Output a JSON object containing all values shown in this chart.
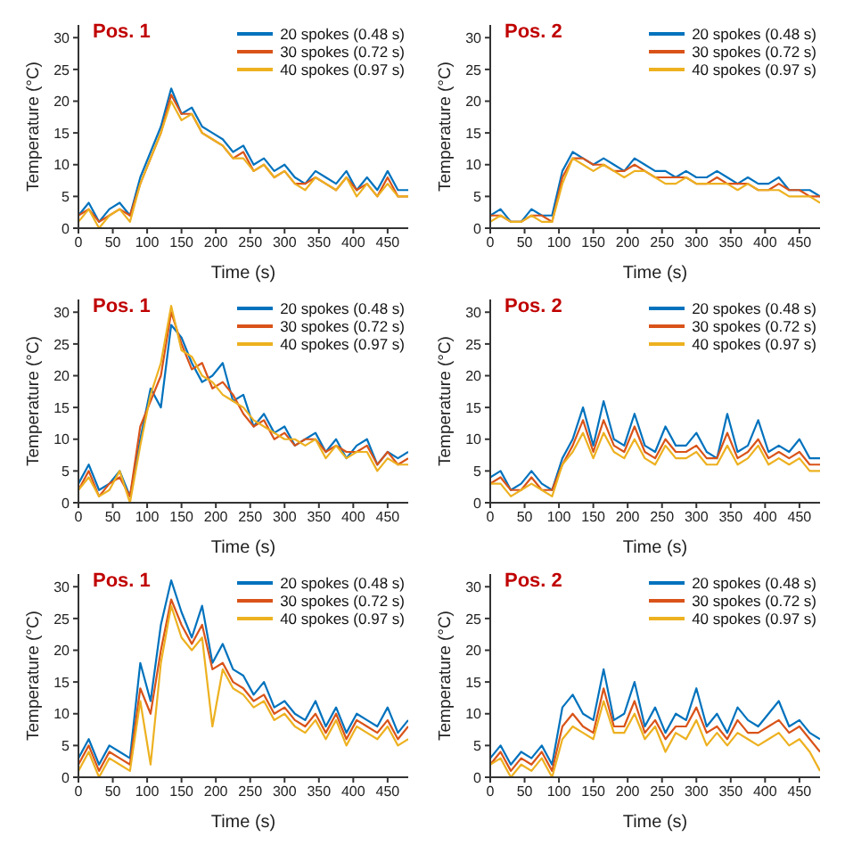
{
  "chart_data": [
    {
      "type": "line",
      "title": "Pos. 1",
      "xlabel": "Time (s)",
      "ylabel": "Temperature (°C)",
      "xlim": [
        0,
        480
      ],
      "xticks": [
        0,
        50,
        100,
        150,
        200,
        250,
        300,
        350,
        400,
        450
      ],
      "ylim": [
        0,
        32
      ],
      "yticks": [
        0,
        5,
        10,
        15,
        20,
        25,
        30
      ],
      "grid": false,
      "legend": "top right",
      "marker": "none",
      "line_style": "solid",
      "x": [
        0,
        15,
        30,
        45,
        60,
        75,
        90,
        105,
        120,
        135,
        150,
        165,
        180,
        195,
        210,
        225,
        240,
        255,
        270,
        285,
        300,
        315,
        330,
        345,
        360,
        375,
        390,
        405,
        420,
        435,
        450,
        465,
        480
      ],
      "series": [
        {
          "name": "20 spokes (0.48 s)",
          "color": "#0072bd",
          "values": [
            2,
            4,
            1,
            3,
            4,
            2,
            8,
            12,
            16,
            22,
            18,
            19,
            16,
            15,
            14,
            12,
            13,
            10,
            11,
            9,
            10,
            8,
            7,
            9,
            8,
            7,
            9,
            6,
            8,
            6,
            9,
            6,
            6
          ]
        },
        {
          "name": "30 spokes (0.72 s)",
          "color": "#d95319",
          "values": [
            2,
            3,
            1,
            2,
            3,
            2,
            7,
            11,
            15,
            21,
            18,
            18,
            15,
            14,
            13,
            11,
            12,
            9,
            10,
            8,
            9,
            7,
            7,
            8,
            7,
            6,
            8,
            6,
            7,
            5,
            8,
            5,
            5
          ]
        },
        {
          "name": "40 spokes (0.97 s)",
          "color": "#edb120",
          "values": [
            1,
            3,
            0,
            2,
            3,
            1,
            7,
            11,
            15,
            20,
            17,
            18,
            15,
            14,
            13,
            11,
            11,
            9,
            10,
            8,
            9,
            7,
            6,
            8,
            7,
            6,
            8,
            5,
            7,
            5,
            7,
            5,
            5
          ]
        }
      ]
    },
    {
      "type": "line",
      "title": "Pos. 2",
      "xlabel": "Time (s)",
      "ylabel": "Temperature (°C)",
      "xlim": [
        0,
        480
      ],
      "xticks": [
        0,
        50,
        100,
        150,
        200,
        250,
        300,
        350,
        400,
        450
      ],
      "ylim": [
        0,
        32
      ],
      "yticks": [
        0,
        5,
        10,
        15,
        20,
        25,
        30
      ],
      "grid": false,
      "legend": "top right",
      "marker": "none",
      "line_style": "solid",
      "x": [
        0,
        15,
        30,
        45,
        60,
        75,
        90,
        105,
        120,
        135,
        150,
        165,
        180,
        195,
        210,
        225,
        240,
        255,
        270,
        285,
        300,
        315,
        330,
        345,
        360,
        375,
        390,
        405,
        420,
        435,
        450,
        465,
        480
      ],
      "series": [
        {
          "name": "20 spokes (0.48 s)",
          "color": "#0072bd",
          "values": [
            2,
            3,
            1,
            1,
            3,
            2,
            2,
            9,
            12,
            11,
            10,
            11,
            10,
            9,
            11,
            10,
            9,
            9,
            8,
            9,
            8,
            8,
            9,
            8,
            7,
            8,
            7,
            7,
            8,
            6,
            6,
            6,
            5
          ]
        },
        {
          "name": "30 spokes (0.72 s)",
          "color": "#d95319",
          "values": [
            2,
            2,
            1,
            1,
            2,
            2,
            1,
            8,
            11,
            11,
            10,
            10,
            9,
            9,
            10,
            9,
            8,
            8,
            8,
            8,
            7,
            7,
            8,
            7,
            7,
            7,
            6,
            6,
            7,
            6,
            6,
            5,
            5
          ]
        },
        {
          "name": "40 spokes (0.97 s)",
          "color": "#edb120",
          "values": [
            1,
            2,
            1,
            1,
            2,
            1,
            1,
            7,
            11,
            10,
            9,
            10,
            9,
            8,
            9,
            9,
            8,
            7,
            7,
            8,
            7,
            7,
            7,
            7,
            6,
            7,
            6,
            6,
            6,
            5,
            5,
            5,
            4
          ]
        }
      ]
    },
    {
      "type": "line",
      "title": "Pos. 1",
      "xlabel": "Time (s)",
      "ylabel": "Temperature (°C)",
      "xlim": [
        0,
        480
      ],
      "xticks": [
        0,
        50,
        100,
        150,
        200,
        250,
        300,
        350,
        400,
        450
      ],
      "ylim": [
        0,
        32
      ],
      "yticks": [
        0,
        5,
        10,
        15,
        20,
        25,
        30
      ],
      "grid": false,
      "legend": "top right",
      "marker": "none",
      "line_style": "solid",
      "x": [
        0,
        15,
        30,
        45,
        60,
        75,
        90,
        105,
        120,
        135,
        150,
        165,
        180,
        195,
        210,
        225,
        240,
        255,
        270,
        285,
        300,
        315,
        330,
        345,
        360,
        375,
        390,
        405,
        420,
        435,
        450,
        465,
        480
      ],
      "series": [
        {
          "name": "20 spokes (0.48 s)",
          "color": "#0072bd",
          "values": [
            3,
            6,
            2,
            3,
            5,
            1,
            10,
            18,
            15,
            28,
            26,
            22,
            19,
            20,
            22,
            16,
            17,
            12,
            14,
            11,
            12,
            9,
            10,
            11,
            8,
            10,
            7,
            9,
            10,
            6,
            8,
            7,
            8
          ]
        },
        {
          "name": "30 spokes (0.72 s)",
          "color": "#d95319",
          "values": [
            2,
            5,
            1,
            3,
            4,
            1,
            12,
            16,
            20,
            30,
            25,
            21,
            22,
            18,
            19,
            17,
            14,
            12,
            13,
            10,
            11,
            9,
            10,
            10,
            8,
            9,
            8,
            8,
            9,
            6,
            8,
            6,
            7
          ]
        },
        {
          "name": "40 spokes (0.97 s)",
          "color": "#edb120",
          "values": [
            2,
            4,
            1,
            2,
            5,
            0,
            9,
            17,
            22,
            31,
            24,
            23,
            20,
            19,
            17,
            16,
            15,
            13,
            12,
            11,
            10,
            10,
            9,
            10,
            7,
            9,
            7,
            8,
            8,
            5,
            7,
            6,
            6
          ]
        }
      ]
    },
    {
      "type": "line",
      "title": "Pos. 2",
      "xlabel": "Time (s)",
      "ylabel": "Temperature (°C)",
      "xlim": [
        0,
        480
      ],
      "xticks": [
        0,
        50,
        100,
        150,
        200,
        250,
        300,
        350,
        400,
        450
      ],
      "ylim": [
        0,
        32
      ],
      "yticks": [
        0,
        5,
        10,
        15,
        20,
        25,
        30
      ],
      "grid": false,
      "legend": "top right",
      "marker": "none",
      "line_style": "solid",
      "x": [
        0,
        15,
        30,
        45,
        60,
        75,
        90,
        105,
        120,
        135,
        150,
        165,
        180,
        195,
        210,
        225,
        240,
        255,
        270,
        285,
        300,
        315,
        330,
        345,
        360,
        375,
        390,
        405,
        420,
        435,
        450,
        465,
        480
      ],
      "series": [
        {
          "name": "20 spokes (0.48 s)",
          "color": "#0072bd",
          "values": [
            4,
            5,
            2,
            3,
            5,
            3,
            2,
            7,
            10,
            15,
            9,
            16,
            10,
            9,
            14,
            9,
            8,
            12,
            9,
            9,
            11,
            8,
            7,
            14,
            8,
            9,
            13,
            8,
            9,
            8,
            10,
            7,
            7
          ]
        },
        {
          "name": "30 spokes (0.72 s)",
          "color": "#d95319",
          "values": [
            3,
            4,
            2,
            2,
            4,
            2,
            2,
            6,
            9,
            13,
            8,
            13,
            9,
            8,
            12,
            8,
            7,
            10,
            8,
            8,
            9,
            7,
            7,
            11,
            7,
            8,
            10,
            7,
            8,
            7,
            8,
            6,
            6
          ]
        },
        {
          "name": "40 spokes (0.97 s)",
          "color": "#edb120",
          "values": [
            3,
            3,
            1,
            2,
            3,
            2,
            1,
            6,
            8,
            11,
            7,
            11,
            8,
            7,
            10,
            7,
            6,
            9,
            7,
            7,
            8,
            6,
            6,
            9,
            6,
            7,
            9,
            6,
            7,
            6,
            7,
            5,
            5
          ]
        }
      ]
    },
    {
      "type": "line",
      "title": "Pos. 1",
      "xlabel": "Time (s)",
      "ylabel": "Temperature (°C)",
      "xlim": [
        0,
        480
      ],
      "xticks": [
        0,
        50,
        100,
        150,
        200,
        250,
        300,
        350,
        400,
        450
      ],
      "ylim": [
        0,
        32
      ],
      "yticks": [
        0,
        5,
        10,
        15,
        20,
        25,
        30
      ],
      "grid": false,
      "legend": "top right",
      "marker": "none",
      "line_style": "solid",
      "x": [
        0,
        15,
        30,
        45,
        60,
        75,
        90,
        105,
        120,
        135,
        150,
        165,
        180,
        195,
        210,
        225,
        240,
        255,
        270,
        285,
        300,
        315,
        330,
        345,
        360,
        375,
        390,
        405,
        420,
        435,
        450,
        465,
        480
      ],
      "series": [
        {
          "name": "20 spokes (0.48 s)",
          "color": "#0072bd",
          "values": [
            3,
            6,
            2,
            5,
            4,
            3,
            18,
            12,
            24,
            31,
            26,
            22,
            27,
            18,
            21,
            17,
            16,
            13,
            15,
            11,
            12,
            10,
            9,
            12,
            8,
            11,
            7,
            10,
            9,
            8,
            11,
            7,
            9
          ]
        },
        {
          "name": "30 spokes (0.72 s)",
          "color": "#d95319",
          "values": [
            2,
            5,
            1,
            4,
            3,
            2,
            14,
            10,
            20,
            28,
            24,
            21,
            24,
            17,
            18,
            15,
            14,
            12,
            13,
            10,
            11,
            9,
            8,
            10,
            7,
            10,
            6,
            9,
            8,
            7,
            9,
            6,
            8
          ]
        },
        {
          "name": "40 spokes (0.97 s)",
          "color": "#edb120",
          "values": [
            1,
            4,
            0,
            3,
            2,
            1,
            12,
            2,
            18,
            27,
            22,
            20,
            22,
            8,
            17,
            14,
            13,
            11,
            12,
            9,
            10,
            8,
            7,
            9,
            6,
            9,
            5,
            8,
            7,
            6,
            8,
            5,
            6
          ]
        }
      ]
    },
    {
      "type": "line",
      "title": "Pos. 2",
      "xlabel": "Time (s)",
      "ylabel": "Temperature (°C)",
      "xlim": [
        0,
        480
      ],
      "xticks": [
        0,
        50,
        100,
        150,
        200,
        250,
        300,
        350,
        400,
        450
      ],
      "ylim": [
        0,
        32
      ],
      "yticks": [
        0,
        5,
        10,
        15,
        20,
        25,
        30
      ],
      "grid": false,
      "legend": "top right",
      "marker": "none",
      "line_style": "solid",
      "x": [
        0,
        15,
        30,
        45,
        60,
        75,
        90,
        105,
        120,
        135,
        150,
        165,
        180,
        195,
        210,
        225,
        240,
        255,
        270,
        285,
        300,
        315,
        330,
        345,
        360,
        375,
        390,
        405,
        420,
        435,
        450,
        465,
        480
      ],
      "series": [
        {
          "name": "20 spokes (0.48 s)",
          "color": "#0072bd",
          "values": [
            3,
            5,
            2,
            4,
            3,
            5,
            2,
            11,
            13,
            10,
            9,
            17,
            9,
            10,
            15,
            8,
            11,
            7,
            10,
            9,
            14,
            8,
            10,
            7,
            11,
            9,
            8,
            10,
            12,
            8,
            9,
            7,
            6
          ]
        },
        {
          "name": "30 spokes (0.72 s)",
          "color": "#d95319",
          "values": [
            2,
            4,
            1,
            3,
            2,
            4,
            1,
            8,
            10,
            8,
            7,
            14,
            8,
            8,
            12,
            7,
            9,
            6,
            8,
            8,
            11,
            7,
            8,
            6,
            9,
            7,
            7,
            8,
            9,
            7,
            8,
            6,
            4
          ]
        },
        {
          "name": "40 spokes (0.97 s)",
          "color": "#edb120",
          "values": [
            2,
            3,
            0,
            2,
            1,
            3,
            0,
            6,
            8,
            7,
            6,
            12,
            7,
            7,
            10,
            6,
            8,
            4,
            7,
            6,
            9,
            5,
            7,
            5,
            7,
            6,
            5,
            6,
            7,
            5,
            6,
            4,
            1
          ]
        }
      ]
    }
  ]
}
